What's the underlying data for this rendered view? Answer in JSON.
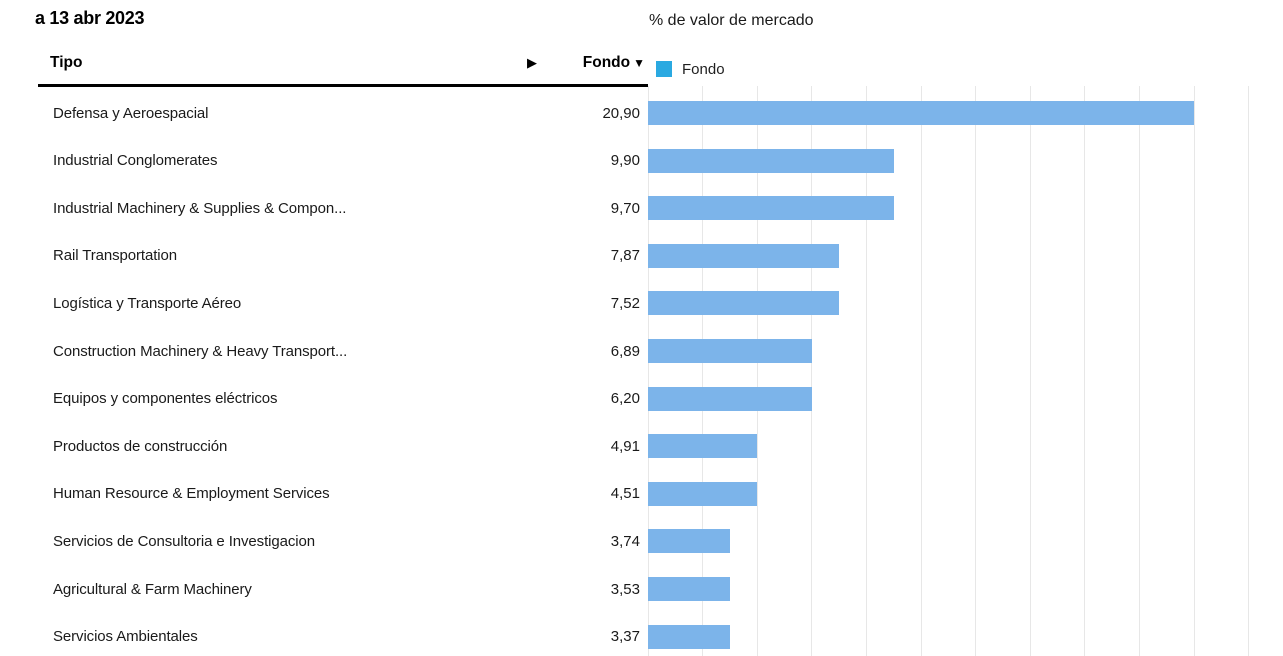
{
  "header": {
    "as_of": "a 13 abr 2023"
  },
  "chart": {
    "title": "% de valor de mercado",
    "legend": {
      "label": "Fondo",
      "color": "#2AA9E1"
    }
  },
  "table": {
    "columns": {
      "tipo": "Tipo",
      "fondo": "Fondo",
      "sort_indicator": "▼",
      "expand_indicator": "▶"
    },
    "rows": [
      {
        "label": "Defensa y Aeroespacial",
        "value_display": "20,90",
        "value": 20.9
      },
      {
        "label": "Industrial Conglomerates",
        "value_display": "9,90",
        "value": 9.9
      },
      {
        "label": "Industrial Machinery & Supplies & Compon...",
        "value_display": "9,70",
        "value": 9.7
      },
      {
        "label": "Rail Transportation",
        "value_display": "7,87",
        "value": 7.87
      },
      {
        "label": "Logística y Transporte Aéreo",
        "value_display": "7,52",
        "value": 7.52
      },
      {
        "label": "Construction Machinery & Heavy Transport...",
        "value_display": "6,89",
        "value": 6.89
      },
      {
        "label": "Equipos y componentes eléctricos",
        "value_display": "6,20",
        "value": 6.2
      },
      {
        "label": "Productos de construcción",
        "value_display": "4,91",
        "value": 4.91
      },
      {
        "label": "Human Resource & Employment Services",
        "value_display": "4,51",
        "value": 4.51
      },
      {
        "label": "Servicios de Consultoria e Investigacion",
        "value_display": "3,74",
        "value": 3.74
      },
      {
        "label": "Agricultural & Farm Machinery",
        "value_display": "3,53",
        "value": 3.53
      },
      {
        "label": "Servicios Ambientales",
        "value_display": "3,37",
        "value": 3.37
      }
    ]
  },
  "chart_data": {
    "type": "bar",
    "orientation": "horizontal",
    "title": "% de valor de mercado",
    "subtitle": "a 13 abr 2023",
    "legend_entries": [
      "Fondo"
    ],
    "legend_position": "top",
    "categories": [
      "Defensa y Aeroespacial",
      "Industrial Conglomerates",
      "Industrial Machinery & Supplies & Compon...",
      "Rail Transportation",
      "Logística y Transporte Aéreo",
      "Construction Machinery & Heavy Transport...",
      "Equipos y componentes eléctricos",
      "Productos de construcción",
      "Human Resource & Employment Services",
      "Servicios de Consultoria e Investigacion",
      "Agricultural & Farm Machinery",
      "Servicios Ambientales"
    ],
    "series": [
      {
        "name": "Fondo",
        "values": [
          20.9,
          9.9,
          9.7,
          7.87,
          7.52,
          6.89,
          6.2,
          4.91,
          4.51,
          3.74,
          3.53,
          3.37
        ]
      }
    ],
    "xlabel": "",
    "ylabel": "",
    "xlim": [
      0,
      22
    ],
    "grid_step": 2,
    "grid": true,
    "bar_color": "#7CB4EA"
  }
}
